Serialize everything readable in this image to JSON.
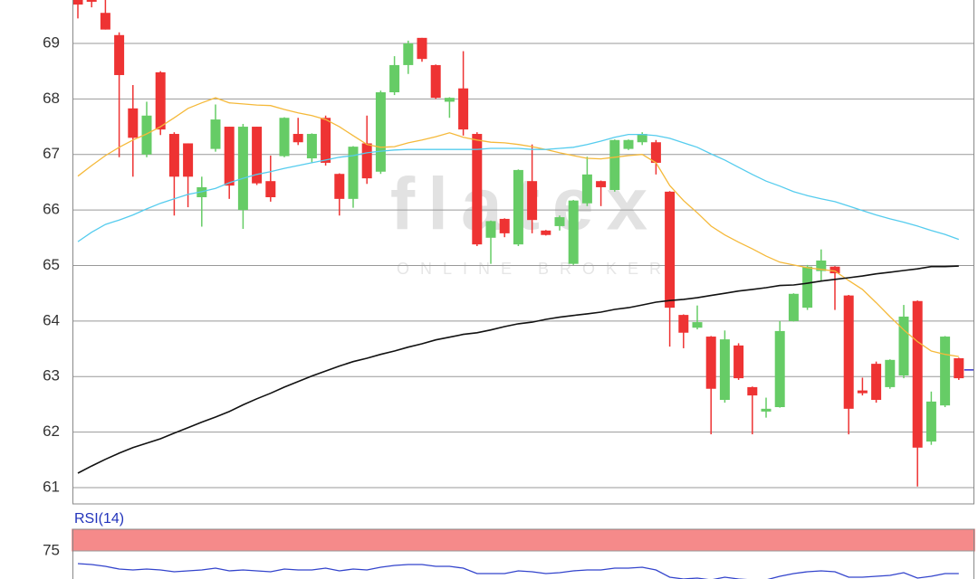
{
  "chart_data": [
    {
      "type": "candlestick",
      "watermark": {
        "title": "flatex",
        "subtitle": "ONLINE BROKER"
      },
      "open": [
        69.8,
        69.8,
        69.55,
        69.15,
        67.83,
        67.0,
        68.48,
        67.37,
        67.2,
        66.23,
        67.1,
        67.5,
        66.0,
        67.5,
        66.52,
        66.97,
        67.37,
        66.93,
        67.66,
        66.65,
        66.2,
        67.2,
        66.69,
        68.12,
        68.61,
        69.1,
        68.61,
        67.95,
        68.19,
        67.37,
        65.5,
        65.84,
        65.38,
        66.52,
        65.63,
        65.71,
        65.03,
        66.12,
        66.52,
        66.36,
        67.1,
        67.22,
        67.22,
        66.33,
        64.11,
        63.88,
        63.72,
        62.58,
        63.56,
        62.81,
        62.37,
        62.45,
        64.0,
        64.24,
        64.9,
        64.98,
        64.46,
        62.75,
        63.23,
        62.81,
        63.02,
        64.36,
        61.83,
        62.48,
        63.33
      ],
      "high": [
        69.8,
        69.85,
        69.8,
        69.2,
        68.25,
        67.95,
        68.5,
        67.4,
        67.2,
        66.6,
        67.9,
        67.5,
        67.55,
        67.5,
        66.98,
        67.67,
        67.66,
        67.38,
        67.7,
        66.66,
        67.15,
        67.7,
        68.15,
        68.77,
        69.05,
        69.1,
        68.62,
        68.03,
        68.86,
        67.4,
        65.81,
        65.85,
        66.73,
        67.18,
        65.64,
        65.9,
        66.18,
        66.96,
        66.53,
        67.27,
        67.27,
        67.4,
        67.26,
        66.34,
        64.12,
        64.28,
        63.73,
        63.83,
        63.6,
        62.82,
        62.62,
        64.0,
        64.5,
        65.01,
        65.29,
        64.99,
        64.47,
        62.98,
        63.27,
        63.31,
        64.29,
        64.37,
        62.73,
        63.73,
        63.34
      ],
      "low": [
        69.45,
        69.65,
        69.25,
        66.95,
        66.6,
        66.95,
        67.35,
        65.9,
        66.05,
        65.7,
        67.05,
        66.2,
        65.66,
        66.45,
        66.15,
        66.95,
        67.17,
        66.85,
        66.8,
        65.9,
        66.04,
        66.47,
        66.65,
        68.07,
        68.45,
        68.67,
        68.0,
        67.66,
        67.34,
        65.35,
        65.03,
        65.51,
        65.35,
        65.58,
        65.54,
        65.63,
        65.01,
        66.07,
        66.07,
        66.33,
        67.08,
        67.17,
        66.64,
        63.54,
        63.51,
        63.85,
        61.96,
        62.53,
        62.94,
        61.96,
        62.26,
        62.44,
        63.99,
        64.2,
        64.73,
        64.2,
        61.96,
        62.66,
        62.53,
        62.78,
        62.97,
        61.02,
        61.77,
        62.45,
        62.94
      ],
      "close": [
        69.7,
        69.75,
        69.25,
        68.43,
        67.3,
        67.7,
        67.45,
        66.6,
        66.6,
        66.41,
        67.63,
        66.44,
        67.5,
        66.48,
        66.23,
        67.66,
        67.22,
        67.37,
        66.85,
        66.2,
        67.14,
        66.57,
        68.12,
        68.61,
        69.0,
        68.72,
        68.02,
        68.02,
        67.45,
        65.38,
        65.8,
        65.58,
        66.72,
        65.82,
        65.55,
        65.87,
        66.17,
        66.64,
        66.41,
        67.26,
        67.26,
        67.37,
        66.85,
        64.24,
        63.79,
        63.98,
        62.78,
        63.67,
        62.97,
        62.66,
        62.42,
        63.82,
        64.49,
        64.98,
        65.09,
        64.86,
        62.42,
        62.7,
        62.58,
        63.3,
        64.08,
        61.72,
        62.55,
        63.72,
        62.97
      ],
      "up_color": "#66cc66",
      "down_color": "#ee3333",
      "series": [
        {
          "color": "#f5b93a",
          "values": [
            66.61,
            66.8,
            66.98,
            67.13,
            67.26,
            67.37,
            67.5,
            67.66,
            67.83,
            67.93,
            68.02,
            67.93,
            67.91,
            67.89,
            67.88,
            67.81,
            67.75,
            67.7,
            67.63,
            67.5,
            67.34,
            67.18,
            67.13,
            67.14,
            67.21,
            67.26,
            67.32,
            67.39,
            67.31,
            67.26,
            67.22,
            67.21,
            67.18,
            67.14,
            67.09,
            67.03,
            66.98,
            66.93,
            66.92,
            66.95,
            66.98,
            67.0,
            66.85,
            66.44,
            66.17,
            65.95,
            65.71,
            65.55,
            65.42,
            65.3,
            65.17,
            65.06,
            65.01,
            64.96,
            64.93,
            64.9,
            64.73,
            64.57,
            64.33,
            64.08,
            63.84,
            63.63,
            63.46,
            63.4,
            63.36
          ]
        },
        {
          "color": "#55ccee",
          "values": [
            65.43,
            65.6,
            65.74,
            65.82,
            65.91,
            66.02,
            66.12,
            66.2,
            66.28,
            66.33,
            66.39,
            66.49,
            66.57,
            66.64,
            66.69,
            66.75,
            66.8,
            66.85,
            66.9,
            66.95,
            66.98,
            67.03,
            67.06,
            67.08,
            67.09,
            67.09,
            67.09,
            67.09,
            67.09,
            67.09,
            67.11,
            67.11,
            67.11,
            67.09,
            67.09,
            67.11,
            67.13,
            67.18,
            67.24,
            67.31,
            67.36,
            67.36,
            67.34,
            67.29,
            67.21,
            67.13,
            67.01,
            66.9,
            66.77,
            66.64,
            66.52,
            66.43,
            66.33,
            66.26,
            66.2,
            66.15,
            66.07,
            65.99,
            65.91,
            65.84,
            65.78,
            65.71,
            65.63,
            65.56,
            65.47
          ]
        },
        {
          "color": "#111111",
          "values": [
            61.26,
            61.39,
            61.51,
            61.62,
            61.72,
            61.8,
            61.88,
            61.98,
            62.08,
            62.18,
            62.27,
            62.37,
            62.49,
            62.6,
            62.7,
            62.81,
            62.91,
            63.01,
            63.1,
            63.19,
            63.27,
            63.33,
            63.4,
            63.46,
            63.53,
            63.59,
            63.66,
            63.71,
            63.76,
            63.79,
            63.84,
            63.9,
            63.95,
            63.98,
            64.03,
            64.07,
            64.1,
            64.13,
            64.16,
            64.21,
            64.24,
            64.29,
            64.34,
            64.37,
            64.39,
            64.42,
            64.46,
            64.5,
            64.54,
            64.57,
            64.6,
            64.64,
            64.65,
            64.68,
            64.72,
            64.75,
            64.78,
            64.81,
            64.85,
            64.88,
            64.91,
            64.94,
            64.98,
            64.98,
            64.99
          ]
        }
      ],
      "last_price": 63.12,
      "last_price_color": "#3333cc",
      "ylim": [
        60.7,
        69.8
      ],
      "yticks": [
        61,
        62,
        63,
        64,
        65,
        66,
        67,
        68,
        69
      ],
      "grid": true
    },
    {
      "type": "line",
      "title": "RSI(14)",
      "series": [
        {
          "color": "#3344cc",
          "values": [
            60.4,
            59.4,
            57.3,
            54.2,
            53.1,
            54.2,
            53.1,
            51.0,
            52.1,
            53.1,
            55.2,
            52.1,
            53.1,
            52.1,
            51.0,
            54.2,
            53.1,
            53.1,
            55.2,
            52.1,
            54.2,
            53.1,
            56.3,
            58.3,
            59.4,
            59.4,
            57.3,
            57.3,
            55.2,
            49.0,
            49.0,
            49.0,
            52.1,
            51.0,
            49.0,
            50.0,
            52.1,
            53.1,
            53.1,
            55.2,
            55.2,
            56.3,
            53.1,
            44.8,
            42.7,
            43.8,
            41.7,
            44.8,
            42.7,
            41.7,
            41.7,
            45.8,
            49.0,
            51.0,
            52.1,
            51.0,
            44.8,
            44.8,
            45.8,
            46.9,
            50.0,
            43.8,
            45.8,
            49.0,
            49.0
          ]
        }
      ],
      "band": [
        75,
        100
      ],
      "band_color": "#f58a8a",
      "ylim": [
        0,
        100
      ],
      "yticks": [
        75
      ],
      "grid": true
    }
  ]
}
